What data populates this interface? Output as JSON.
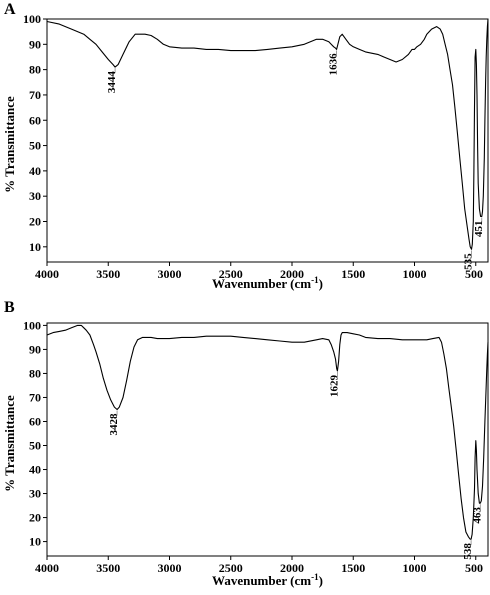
{
  "chart_data": [
    {
      "type": "line",
      "panel": "A",
      "xlabel_main": "Wavenumber (cm",
      "xlabel_sup": "-1",
      "xlabel_tail": ")",
      "ylabel": "% Transmittance",
      "xlim": [
        4000,
        400
      ],
      "ylim": [
        4,
        100
      ],
      "xticks": [
        4000,
        3500,
        3000,
        2500,
        2000,
        1500,
        1000,
        500
      ],
      "yticks": [
        10,
        20,
        30,
        40,
        50,
        60,
        70,
        80,
        90,
        100
      ],
      "grid": false,
      "peaks": [
        {
          "label": "3444",
          "x": 3444,
          "y": 81
        },
        {
          "label": "1636",
          "x": 1636,
          "y": 88
        },
        {
          "label": "535",
          "x": 535,
          "y": 9
        },
        {
          "label": "451",
          "x": 451,
          "y": 22
        }
      ],
      "series": [
        {
          "x": [
            4000,
            3900,
            3800,
            3700,
            3650,
            3600,
            3550,
            3500,
            3460,
            3444,
            3420,
            3380,
            3330,
            3280,
            3250,
            3200,
            3150,
            3100,
            3050,
            3000,
            2900,
            2800,
            2700,
            2600,
            2500,
            2400,
            2300,
            2200,
            2100,
            2000,
            1900,
            1800,
            1750,
            1700,
            1680,
            1660,
            1645,
            1636,
            1625,
            1610,
            1590,
            1560,
            1530,
            1500,
            1450,
            1400,
            1350,
            1300,
            1250,
            1200,
            1150,
            1100,
            1050,
            1020,
            1000,
            980,
            950,
            920,
            900,
            860,
            820,
            790,
            770,
            750,
            730,
            710,
            690,
            670,
            650,
            630,
            610,
            590,
            570,
            555,
            545,
            535,
            528,
            520,
            515,
            510,
            505,
            500,
            495,
            490,
            485,
            480,
            470,
            460,
            451,
            445,
            438,
            430,
            425,
            420,
            415,
            410,
            405,
            400
          ],
          "y": [
            99,
            98,
            96,
            94,
            92,
            90,
            87,
            84,
            82,
            81,
            82,
            86,
            91,
            94,
            94,
            94,
            93.5,
            92,
            90,
            89,
            88.5,
            88.5,
            88,
            88,
            87.5,
            87.5,
            87.5,
            88,
            88.5,
            89,
            90,
            92,
            92,
            91,
            90,
            89,
            88.5,
            88,
            90,
            93,
            94,
            92,
            90,
            89,
            88,
            87,
            86.5,
            86,
            85,
            84,
            83,
            84,
            86,
            88,
            88,
            89,
            90,
            92,
            94,
            96,
            97,
            96,
            94,
            90,
            86,
            80,
            74,
            65,
            55,
            45,
            35,
            25,
            18,
            13,
            10,
            9,
            11,
            20,
            40,
            65,
            85,
            88,
            82,
            70,
            50,
            35,
            25,
            22,
            22,
            24,
            30,
            45,
            60,
            75,
            85,
            92,
            97,
            100
          ]
        }
      ]
    },
    {
      "type": "line",
      "panel": "B",
      "xlabel_main": "Wavenumber (cm",
      "xlabel_sup": "-1",
      "xlabel_tail": ")",
      "ylabel": "% Transmittance",
      "xlim": [
        4000,
        400
      ],
      "ylim": [
        4,
        101
      ],
      "xticks": [
        4000,
        3500,
        3000,
        2500,
        2000,
        1500,
        1000,
        500
      ],
      "yticks": [
        10,
        20,
        30,
        40,
        50,
        60,
        70,
        80,
        90,
        100
      ],
      "grid": false,
      "peaks": [
        {
          "label": "3428",
          "x": 3428,
          "y": 65
        },
        {
          "label": "1629",
          "x": 1629,
          "y": 81
        },
        {
          "label": "538",
          "x": 538,
          "y": 11
        },
        {
          "label": "463",
          "x": 463,
          "y": 26
        }
      ],
      "series": [
        {
          "x": [
            4000,
            3950,
            3900,
            3850,
            3800,
            3750,
            3720,
            3700,
            3680,
            3650,
            3620,
            3600,
            3570,
            3540,
            3510,
            3480,
            3450,
            3428,
            3410,
            3380,
            3350,
            3320,
            3290,
            3260,
            3220,
            3200,
            3150,
            3100,
            3050,
            3000,
            2900,
            2800,
            2700,
            2600,
            2500,
            2400,
            2300,
            2200,
            2100,
            2000,
            1900,
            1800,
            1750,
            1700,
            1680,
            1660,
            1645,
            1635,
            1629,
            1620,
            1610,
            1600,
            1590,
            1570,
            1550,
            1500,
            1450,
            1400,
            1300,
            1200,
            1100,
            1000,
            900,
            850,
            800,
            780,
            760,
            740,
            720,
            700,
            680,
            660,
            640,
            620,
            600,
            580,
            560,
            545,
            538,
            530,
            520,
            510,
            505,
            500,
            495,
            490,
            480,
            470,
            463,
            455,
            445,
            435,
            425,
            415,
            410,
            405,
            400
          ],
          "y": [
            96,
            97,
            97.5,
            98,
            99,
            100,
            100,
            99,
            98,
            96,
            92,
            89,
            84,
            78,
            73,
            69,
            66,
            65,
            66,
            70,
            77,
            85,
            91,
            94,
            95,
            95,
            95,
            94.5,
            94.5,
            94.5,
            95,
            95,
            95.5,
            95.5,
            95.5,
            95,
            94.5,
            94,
            93.5,
            93,
            93,
            94,
            94.5,
            94,
            92,
            89,
            86,
            82,
            81,
            85,
            92,
            96,
            97,
            97,
            97,
            96.5,
            96,
            95,
            94.5,
            94.5,
            94,
            94,
            94,
            94.5,
            95,
            93,
            88,
            82,
            74,
            66,
            58,
            48,
            38,
            28,
            20,
            14,
            12,
            11,
            11,
            13,
            20,
            32,
            45,
            52,
            48,
            40,
            30,
            26,
            26,
            27,
            33,
            45,
            60,
            75,
            82,
            88,
            93
          ]
        }
      ]
    }
  ]
}
